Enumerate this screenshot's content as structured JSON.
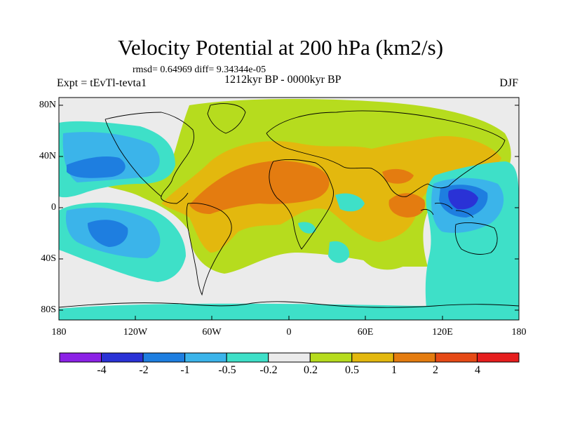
{
  "title": "Velocity Potential at 200 hPa (km2/s)",
  "stats": "rmsd= 0.64969 diff= 9.34344e-05",
  "left_label": "Expt = tEvTl-tevta1",
  "center_label": "1212kyr BP - 0000kyr BP",
  "right_label": "DJF",
  "y_ticks": [
    "80N",
    "40N",
    "0",
    "40S",
    "80S"
  ],
  "x_ticks": [
    "180",
    "120W",
    "60W",
    "0",
    "60E",
    "120E",
    "180"
  ],
  "colorbar": {
    "labels": [
      "-4",
      "-2",
      "-1",
      "-0.5",
      "-0.2",
      "0.2",
      "0.5",
      "1",
      "2",
      "4"
    ],
    "colors": [
      "#8c21e6",
      "#2a32d6",
      "#1e7ee0",
      "#3bb4ea",
      "#3ee0c8",
      "#ebebeb",
      "#b6dc1e",
      "#e3b80e",
      "#e47c10",
      "#e64a16",
      "#e61e1e"
    ]
  },
  "colors": {
    "land_outline": "#000000",
    "ocean_bg": "#ebebeb"
  }
}
